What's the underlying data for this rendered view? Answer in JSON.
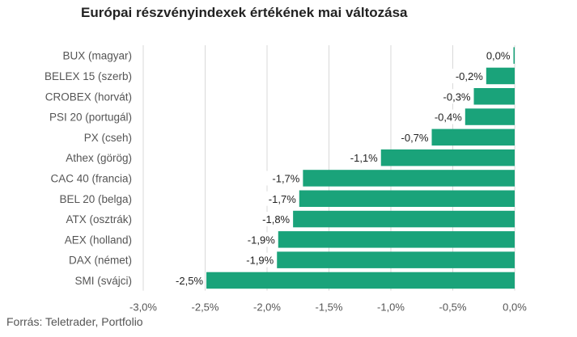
{
  "title": "Európai részvényindexek értékének mai változása",
  "source": "Forrás: Teletrader, Portfolio",
  "chart_data": {
    "type": "bar",
    "orientation": "horizontal",
    "title": "Európai részvényindexek értékének mai változása",
    "xlabel": "",
    "ylabel": "",
    "xlim": [
      -3.0,
      0.0
    ],
    "grid": true,
    "bar_color": "#1aa37a",
    "categories": [
      "BUX (magyar)",
      "BELEX 15 (szerb)",
      "CROBEX (horvát)",
      "PSI 20 (portugál)",
      "PX (cseh)",
      "Athex (görög)",
      "CAC 40 (francia)",
      "BEL 20 (belga)",
      "ATX (osztrák)",
      "AEX (holland)",
      "DAX (német)",
      "SMI (svájci)"
    ],
    "values": [
      -0.01,
      -0.23,
      -0.33,
      -0.4,
      -0.67,
      -1.08,
      -1.71,
      -1.74,
      -1.79,
      -1.91,
      -1.92,
      -2.49
    ],
    "data_labels": [
      "0,0%",
      "-0,2%",
      "-0,3%",
      "-0,4%",
      "-0,7%",
      "-1,1%",
      "-1,7%",
      "-1,7%",
      "-1,8%",
      "-1,9%",
      "-1,9%",
      "-2,5%"
    ],
    "ticks": [
      -3.0,
      -2.5,
      -2.0,
      -1.5,
      -1.0,
      -0.5,
      0.0
    ],
    "tick_labels": [
      "-3,0%",
      "-2,5%",
      "-2,0%",
      "-1,5%",
      "-1,0%",
      "-0,5%",
      "0,0%"
    ]
  }
}
